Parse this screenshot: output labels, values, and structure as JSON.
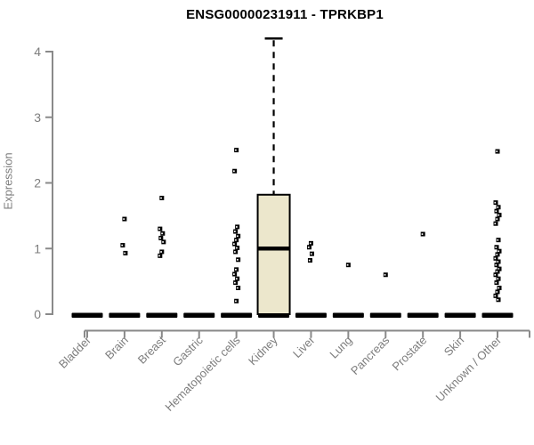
{
  "chart_data": {
    "type": "boxplot",
    "title": "ENSG00000231911 - TPRKBP1",
    "xlabel": "",
    "ylabel": "Expression",
    "ylim": [
      0,
      4.3
    ],
    "yticks": [
      0,
      1,
      2,
      3,
      4
    ],
    "grid": false,
    "legend": "none",
    "categories": [
      "Bladder",
      "Brain",
      "Breast",
      "Gastric",
      "Hematopoietic cells",
      "Kidney",
      "Liver",
      "Lung",
      "Pancreas",
      "Prostate",
      "Skin",
      "Unknown / Other"
    ],
    "zero_bar_note": "every category shows a dense horizontal bar of overlapping samples at expression 0",
    "columns": [
      {
        "label": "Bladder",
        "points": [],
        "zero_bar": true
      },
      {
        "label": "Brain",
        "points": [
          1.45,
          1.05,
          0.93
        ],
        "zero_bar": true
      },
      {
        "label": "Breast",
        "points": [
          1.77,
          1.3,
          1.23,
          1.16,
          1.1,
          0.95,
          0.89
        ],
        "zero_bar": true
      },
      {
        "label": "Gastric",
        "points": [],
        "zero_bar": true
      },
      {
        "label": "Hematopoietic cells",
        "points": [
          2.5,
          2.18,
          1.33,
          1.26,
          1.19,
          1.13,
          1.07,
          1.01,
          0.95,
          0.83,
          0.68,
          0.61,
          0.54,
          0.48,
          0.4,
          0.2
        ],
        "zero_bar": true
      },
      {
        "label": "Kidney",
        "points": [],
        "zero_bar": true,
        "box": {
          "whisker_high": 4.2,
          "q3": 1.82,
          "median": 1.0,
          "q1": 0.0,
          "whisker_low": 0.0
        }
      },
      {
        "label": "Liver",
        "points": [
          1.08,
          1.02,
          0.92,
          0.82
        ],
        "zero_bar": true
      },
      {
        "label": "Lung",
        "points": [
          0.75
        ],
        "zero_bar": true
      },
      {
        "label": "Pancreas",
        "points": [
          0.6
        ],
        "zero_bar": true
      },
      {
        "label": "Prostate",
        "points": [
          1.22
        ],
        "zero_bar": true
      },
      {
        "label": "Skin",
        "points": [],
        "zero_bar": true
      },
      {
        "label": "Unknown / Other",
        "points": [
          2.48,
          1.7,
          1.63,
          1.57,
          1.51,
          1.45,
          1.38,
          1.13,
          1.02,
          0.96,
          0.91,
          0.85,
          0.8,
          0.75,
          0.69,
          0.65,
          0.6,
          0.54,
          0.48,
          0.4,
          0.34,
          0.28,
          0.22
        ],
        "zero_bar": true
      }
    ],
    "colors": {
      "box_fill": "#ECE7CC",
      "box_border": "#000000",
      "median": "#000000",
      "whisker": "#000000",
      "point": "#000000",
      "zero_bar": "#000000",
      "axis_line": "#8a8a8a",
      "tick_label": "#7d7d7d",
      "title": "#000000"
    }
  }
}
